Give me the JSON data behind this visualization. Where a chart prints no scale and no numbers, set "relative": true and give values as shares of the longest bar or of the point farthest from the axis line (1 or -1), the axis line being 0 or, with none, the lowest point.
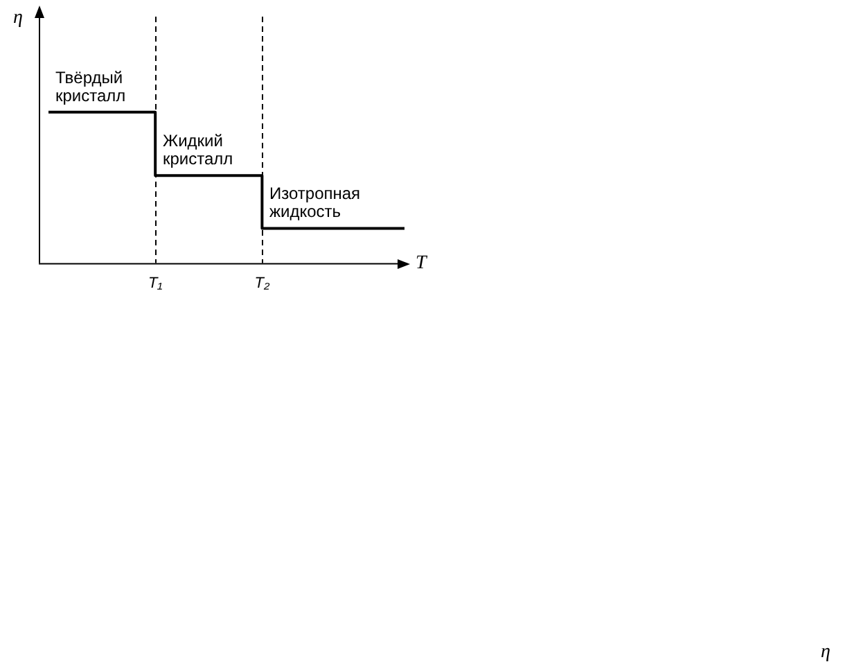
{
  "chart_data": {
    "type": "step",
    "relative": true,
    "xlabel": "T",
    "ylabel": "η",
    "categories": [
      null,
      null,
      null,
      null,
      null,
      null,
      "T₁",
      null,
      null,
      null,
      null,
      null,
      "T₂",
      null,
      null,
      null,
      null,
      null,
      null,
      null,
      null
    ],
    "series": [
      {
        "color": "#000000",
        "values": [
          1,
          1,
          1,
          1,
          1,
          1,
          0.58,
          0.58,
          0.58,
          0.58,
          0.58,
          0.58,
          0.23,
          0.23,
          0.23,
          0.23,
          0.23,
          0.23,
          0.23,
          0.23,
          0.23
        ]
      }
    ],
    "ref_lines": [
      {
        "axis": "x",
        "value": "T₁",
        "line_style": "dashed"
      },
      {
        "axis": "x",
        "value": "T₂",
        "line_style": "dashed"
      }
    ],
    "annotations": [
      "Твёрдый кристалл",
      "Жидкий кристалл",
      "Изотропная жидкость",
      "η"
    ],
    "grid": false,
    "legend": false
  }
}
